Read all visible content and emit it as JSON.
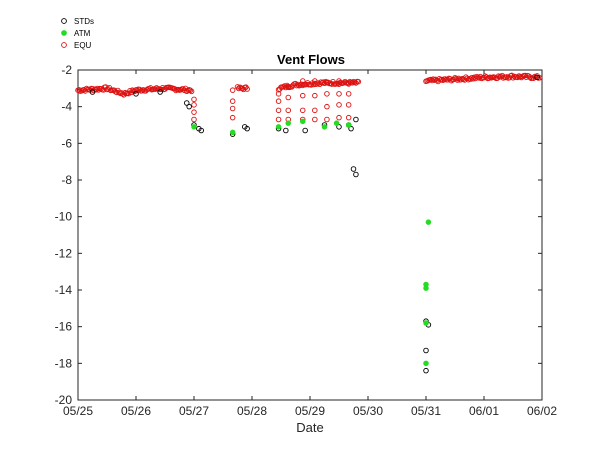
{
  "chart_data": {
    "type": "scatter",
    "title": "Vent Flows",
    "xlabel": "Date",
    "ylabel": "",
    "xlim": [
      "2020-05-25",
      "2020-06-02"
    ],
    "ylim": [
      -20,
      -2
    ],
    "x_ticks": [
      "05/25",
      "05/26",
      "05/27",
      "05/28",
      "05/29",
      "05/30",
      "05/31",
      "06/01",
      "06/02"
    ],
    "y_ticks": [
      -20,
      -18,
      -16,
      -14,
      -12,
      -10,
      -8,
      -6,
      -4,
      -2
    ],
    "grid": false,
    "legend_position": "top-left",
    "series": [
      {
        "name": "STDs",
        "marker": "open-circle",
        "color": "#000000",
        "points": [
          [
            "2020-05-25 06:00",
            -3.2
          ],
          [
            "2020-05-26 00:00",
            -3.3
          ],
          [
            "2020-05-26 10:00",
            -3.2
          ],
          [
            "2020-05-26 21:00",
            -3.8
          ],
          [
            "2020-05-26 22:00",
            -4.0
          ],
          [
            "2020-05-27 00:00",
            -5.0
          ],
          [
            "2020-05-27 02:00",
            -5.2
          ],
          [
            "2020-05-27 03:00",
            -5.3
          ],
          [
            "2020-05-27 16:00",
            -5.5
          ],
          [
            "2020-05-27 21:00",
            -5.1
          ],
          [
            "2020-05-27 22:00",
            -5.2
          ],
          [
            "2020-05-28 11:00",
            -5.2
          ],
          [
            "2020-05-28 14:00",
            -5.3
          ],
          [
            "2020-05-28 22:00",
            -5.3
          ],
          [
            "2020-05-29 06:00",
            -5.0
          ],
          [
            "2020-05-29 12:00",
            -5.1
          ],
          [
            "2020-05-29 16:00",
            -5.0
          ],
          [
            "2020-05-29 17:00",
            -5.2
          ],
          [
            "2020-05-29 19:00",
            -4.7
          ],
          [
            "2020-05-29 18:00",
            -7.4
          ],
          [
            "2020-05-29 19:00",
            -7.7
          ],
          [
            "2020-05-31 00:00",
            -15.7
          ],
          [
            "2020-05-31 01:00",
            -15.9
          ],
          [
            "2020-05-31 00:00",
            -17.3
          ],
          [
            "2020-05-31 00:00",
            -18.4
          ],
          [
            "2020-06-01 22:00",
            -2.4
          ]
        ]
      },
      {
        "name": "ATM",
        "marker": "filled-circle",
        "color": "#22dd22",
        "points": [
          [
            "2020-05-27 00:00",
            -5.1
          ],
          [
            "2020-05-27 16:00",
            -5.4
          ],
          [
            "2020-05-28 11:00",
            -5.1
          ],
          [
            "2020-05-28 15:00",
            -4.9
          ],
          [
            "2020-05-28 21:00",
            -4.8
          ],
          [
            "2020-05-29 06:00",
            -5.1
          ],
          [
            "2020-05-29 11:00",
            -4.9
          ],
          [
            "2020-05-29 16:00",
            -5.0
          ],
          [
            "2020-05-31 01:00",
            -10.3
          ],
          [
            "2020-05-31 00:00",
            -13.7
          ],
          [
            "2020-05-31 00:00",
            -13.9
          ],
          [
            "2020-05-31 00:00",
            -15.8
          ],
          [
            "2020-05-31 00:00",
            -18.0
          ]
        ]
      },
      {
        "name": "EQU",
        "marker": "open-circle",
        "color": "#dd1111",
        "dense_segments": [
          {
            "start": "2020-05-25 00:00",
            "end": "2020-05-26 23:00",
            "step_minutes": 30,
            "anchors": [
              [
                "2020-05-25 00:00",
                -3.1
              ],
              [
                "2020-05-25 12:00",
                -3.0
              ],
              [
                "2020-05-25 19:00",
                -3.3
              ],
              [
                "2020-05-26 00:00",
                -3.1
              ],
              [
                "2020-05-26 12:00",
                -3.0
              ],
              [
                "2020-05-26 23:00",
                -3.1
              ]
            ]
          },
          {
            "start": "2020-05-27 18:00",
            "end": "2020-05-27 22:00",
            "step_minutes": 30,
            "anchors": [
              [
                "2020-05-27 18:00",
                -3.0
              ],
              [
                "2020-05-27 22:00",
                -3.0
              ]
            ]
          },
          {
            "start": "2020-05-28 11:00",
            "end": "2020-05-29 20:00",
            "step_minutes": 30,
            "anchors": [
              [
                "2020-05-28 11:00",
                -3.0
              ],
              [
                "2020-05-28 18:00",
                -2.8
              ],
              [
                "2020-05-29 04:00",
                -2.7
              ],
              [
                "2020-05-29 12:00",
                -2.7
              ],
              [
                "2020-05-29 20:00",
                -2.7
              ]
            ]
          },
          {
            "start": "2020-05-31 00:00",
            "end": "2020-06-01 23:00",
            "step_minutes": 30,
            "anchors": [
              [
                "2020-05-31 00:00",
                -2.6
              ],
              [
                "2020-05-31 12:00",
                -2.5
              ],
              [
                "2020-06-01 00:00",
                -2.4
              ],
              [
                "2020-06-01 12:00",
                -2.35
              ],
              [
                "2020-06-01 23:00",
                -2.4
              ]
            ]
          }
        ],
        "points": [
          [
            "2020-05-27 00:00",
            -3.6
          ],
          [
            "2020-05-27 00:00",
            -3.9
          ],
          [
            "2020-05-27 00:00",
            -4.3
          ],
          [
            "2020-05-27 00:00",
            -4.7
          ],
          [
            "2020-05-27 16:00",
            -3.1
          ],
          [
            "2020-05-27 16:00",
            -3.7
          ],
          [
            "2020-05-27 16:00",
            -4.1
          ],
          [
            "2020-05-27 16:00",
            -4.6
          ],
          [
            "2020-05-28 11:00",
            -3.3
          ],
          [
            "2020-05-28 11:00",
            -3.7
          ],
          [
            "2020-05-28 11:00",
            -4.2
          ],
          [
            "2020-05-28 11:00",
            -4.7
          ],
          [
            "2020-05-28 15:00",
            -2.9
          ],
          [
            "2020-05-28 15:00",
            -3.5
          ],
          [
            "2020-05-28 15:00",
            -4.2
          ],
          [
            "2020-05-28 15:00",
            -4.7
          ],
          [
            "2020-05-28 21:00",
            -2.6
          ],
          [
            "2020-05-28 21:00",
            -3.4
          ],
          [
            "2020-05-28 21:00",
            -4.2
          ],
          [
            "2020-05-28 21:00",
            -4.7
          ],
          [
            "2020-05-29 02:00",
            -2.6
          ],
          [
            "2020-05-29 02:00",
            -3.4
          ],
          [
            "2020-05-29 02:00",
            -4.2
          ],
          [
            "2020-05-29 02:00",
            -4.7
          ],
          [
            "2020-05-29 07:00",
            -2.7
          ],
          [
            "2020-05-29 07:00",
            -3.3
          ],
          [
            "2020-05-29 07:00",
            -4.0
          ],
          [
            "2020-05-29 07:00",
            -4.7
          ],
          [
            "2020-05-29 12:00",
            -2.6
          ],
          [
            "2020-05-29 12:00",
            -3.3
          ],
          [
            "2020-05-29 12:00",
            -3.9
          ],
          [
            "2020-05-29 12:00",
            -4.6
          ],
          [
            "2020-05-29 16:00",
            -2.7
          ],
          [
            "2020-05-29 16:00",
            -3.3
          ],
          [
            "2020-05-29 16:00",
            -3.9
          ],
          [
            "2020-05-29 16:00",
            -4.6
          ]
        ]
      }
    ]
  }
}
